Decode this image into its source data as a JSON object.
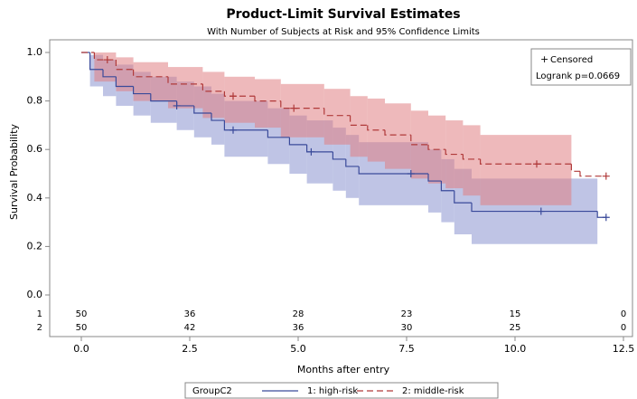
{
  "chart_data": {
    "type": "step",
    "title": "Product-Limit Survival Estimates",
    "subtitle": "With Number of Subjects at Risk and 95% Confidence Limits",
    "x_label": "Months after entry",
    "y_label": "Survival Probability",
    "xlim": [
      0,
      12.5
    ],
    "ylim": [
      0,
      1.0
    ],
    "xticks": [
      {
        "value": 0,
        "label": "0.0"
      },
      2.5,
      {
        "value": 5,
        "label": "5.0"
      },
      7.5,
      {
        "value": 10,
        "label": "10.0"
      },
      12.5
    ],
    "yticks": [
      {
        "value": 0,
        "label": "0.0"
      },
      0.2,
      0.4,
      0.6,
      0.8,
      {
        "value": 1,
        "label": "1.0"
      }
    ],
    "legend_title": "GroupC2",
    "censored_label": "Censored",
    "logrank_label": "Logrank p=0.0669",
    "series": [
      {
        "name": "1: high-risk",
        "row_label": "1",
        "color": "#3a4a9a",
        "band_color": "#a9b0dc",
        "dashed": false,
        "time": [
          0,
          0.2,
          0.5,
          0.8,
          1.2,
          1.6,
          2.2,
          2.6,
          3.0,
          3.3,
          4.3,
          4.8,
          5.2,
          5.8,
          6.1,
          6.4,
          8.0,
          8.3,
          8.6,
          9.0,
          11.9,
          12.1
        ],
        "survival": [
          1.0,
          0.93,
          0.9,
          0.86,
          0.83,
          0.8,
          0.78,
          0.75,
          0.72,
          0.68,
          0.65,
          0.62,
          0.59,
          0.56,
          0.53,
          0.5,
          0.47,
          0.43,
          0.38,
          0.345,
          0.32,
          0.32
        ],
        "lower": [
          null,
          0.86,
          0.82,
          0.78,
          0.74,
          0.71,
          0.68,
          0.65,
          0.62,
          0.57,
          0.54,
          0.5,
          0.46,
          0.43,
          0.4,
          0.37,
          0.34,
          0.3,
          0.25,
          0.21,
          null,
          null
        ],
        "upper": [
          null,
          0.99,
          0.97,
          0.95,
          0.92,
          0.9,
          0.88,
          0.86,
          0.83,
          0.8,
          0.77,
          0.74,
          0.72,
          0.69,
          0.66,
          0.63,
          0.6,
          0.56,
          0.52,
          0.48,
          null,
          null
        ],
        "censor_times": [
          2.2,
          3.5,
          5.3,
          7.6,
          10.6,
          12.1
        ],
        "censor_values": [
          0.78,
          0.68,
          0.59,
          0.5,
          0.345,
          0.32
        ],
        "at_risk": [
          50,
          36,
          28,
          23,
          15,
          0
        ]
      },
      {
        "name": "2: middle-risk",
        "row_label": "2",
        "color": "#b03a3a",
        "band_color": "#e07f84",
        "dashed": true,
        "time": [
          0,
          0.3,
          0.8,
          1.2,
          2.0,
          2.8,
          3.3,
          4.0,
          4.6,
          5.6,
          6.2,
          6.6,
          7.0,
          7.6,
          8.0,
          8.4,
          8.8,
          9.2,
          11.3,
          11.5,
          12.1
        ],
        "survival": [
          1.0,
          0.97,
          0.93,
          0.9,
          0.87,
          0.84,
          0.82,
          0.8,
          0.77,
          0.74,
          0.7,
          0.68,
          0.66,
          0.62,
          0.6,
          0.58,
          0.56,
          0.54,
          0.51,
          0.49,
          0.49
        ],
        "lower": [
          null,
          0.88,
          0.84,
          0.8,
          0.77,
          0.73,
          0.71,
          0.69,
          0.65,
          0.62,
          0.57,
          0.55,
          0.52,
          0.48,
          0.46,
          0.44,
          0.41,
          0.37,
          null,
          null,
          null
        ],
        "upper": [
          null,
          1.0,
          0.98,
          0.96,
          0.94,
          0.92,
          0.9,
          0.89,
          0.87,
          0.85,
          0.82,
          0.81,
          0.79,
          0.76,
          0.74,
          0.72,
          0.7,
          0.66,
          null,
          null,
          null
        ],
        "censor_times": [
          0.6,
          3.5,
          4.9,
          10.5,
          12.1
        ],
        "censor_values": [
          0.97,
          0.82,
          0.77,
          0.54,
          0.49
        ],
        "at_risk": [
          50,
          42,
          36,
          30,
          25,
          0
        ]
      }
    ],
    "at_risk_times": [
      0,
      2.5,
      5,
      7.5,
      10,
      12.5
    ]
  }
}
